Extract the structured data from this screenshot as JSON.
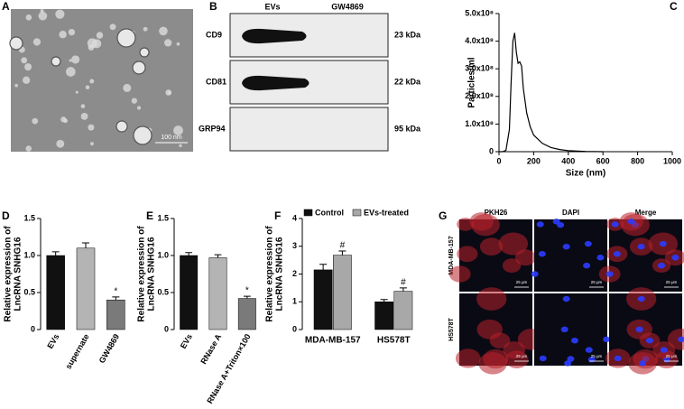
{
  "panel_labels": [
    "A",
    "B",
    "C",
    "D",
    "E",
    "F",
    "G"
  ],
  "tem": {
    "scale_label": "100 nm"
  },
  "blot": {
    "lanes": [
      "EVs",
      "GW4869"
    ],
    "rows": [
      {
        "protein": "CD9",
        "size": "23 kDa"
      },
      {
        "protein": "CD81",
        "size": "22 kDa"
      },
      {
        "protein": "GRP94",
        "size": "95 kDa"
      }
    ]
  },
  "micrographs": {
    "columns": [
      "PKH26",
      "DAPI",
      "Merge"
    ],
    "rows": [
      "MDA-MB-157",
      "HS578T"
    ],
    "scale_label": "25 μm"
  },
  "chart_data": [
    {
      "type": "line",
      "xlabel": "Size (nm)",
      "ylabel": [
        "Particles/ml"
      ],
      "color": "#000000",
      "x": [
        0,
        20,
        40,
        60,
        70,
        80,
        90,
        100,
        110,
        120,
        130,
        140,
        160,
        180,
        200,
        250,
        300,
        350,
        400,
        500,
        600
      ],
      "values": [
        0,
        0,
        5000000,
        80000000,
        250000000,
        400000000,
        430000000,
        360000000,
        320000000,
        325000000,
        310000000,
        230000000,
        140000000,
        90000000,
        60000000,
        30000000,
        15000000,
        8000000,
        4000000,
        1000000,
        0
      ],
      "xlim": [
        0,
        1000
      ],
      "xticks": [
        0,
        200,
        400,
        600,
        800,
        1000
      ],
      "ylim": [
        0,
        500000000
      ],
      "yticks": [
        0,
        {
          "value": 100000000,
          "label": "1.0x10⁸"
        },
        {
          "value": 200000000,
          "label": "2.0x10⁸"
        },
        {
          "value": 300000000,
          "label": "3.0x10⁸"
        },
        {
          "value": 400000000,
          "label": "4.0x10⁸"
        },
        {
          "value": 500000000,
          "label": "5.0x10⁸"
        }
      ]
    },
    {
      "type": "bar",
      "ylabel": [
        "Relative expression of",
        "LncRNA SNHG16"
      ],
      "categories": [
        "EVs",
        "supernate",
        "GW4869"
      ],
      "values": [
        1.0,
        1.1,
        0.4
      ],
      "errors": [
        0.05,
        0.07,
        0.04
      ],
      "colors": [
        "#111111",
        "#b4b4b4",
        "#7a7a7a"
      ],
      "significance": [
        null,
        null,
        "*"
      ],
      "ylim": [
        0,
        1.5
      ],
      "yticks": [
        0,
        0.5,
        {
          "value": 1,
          "label": "1.0"
        },
        1.5
      ]
    },
    {
      "type": "bar",
      "ylabel": [
        "Relative expression of",
        "LncRNA SNHG16"
      ],
      "categories": [
        "EVs",
        "RNase A",
        "RNase A+Triton×100"
      ],
      "values": [
        1.0,
        0.97,
        0.42
      ],
      "errors": [
        0.04,
        0.04,
        0.03
      ],
      "colors": [
        "#111111",
        "#b4b4b4",
        "#7a7a7a"
      ],
      "significance": [
        null,
        null,
        "*"
      ],
      "ylim": [
        0,
        1.5
      ],
      "yticks": [
        0,
        0.5,
        {
          "value": 1,
          "label": "1.0"
        },
        1.5
      ]
    },
    {
      "type": "bar",
      "ylabel": [
        "Relative expression of",
        "LncRNA SNHG16"
      ],
      "categories": [
        "MDA-MB-157",
        "HS578T"
      ],
      "series": [
        {
          "name": "Control",
          "color": "#111111",
          "values": [
            2.15,
            1.0
          ],
          "errors": [
            0.2,
            0.08
          ],
          "significance": [
            null,
            null
          ]
        },
        {
          "name": "EVs-treated",
          "color": "#a8a8a8",
          "values": [
            2.68,
            1.38
          ],
          "errors": [
            0.15,
            0.12
          ],
          "significance": [
            "#",
            "#"
          ]
        }
      ],
      "ylim": [
        0,
        4
      ],
      "yticks": [
        0,
        1,
        2,
        3,
        4
      ]
    }
  ]
}
